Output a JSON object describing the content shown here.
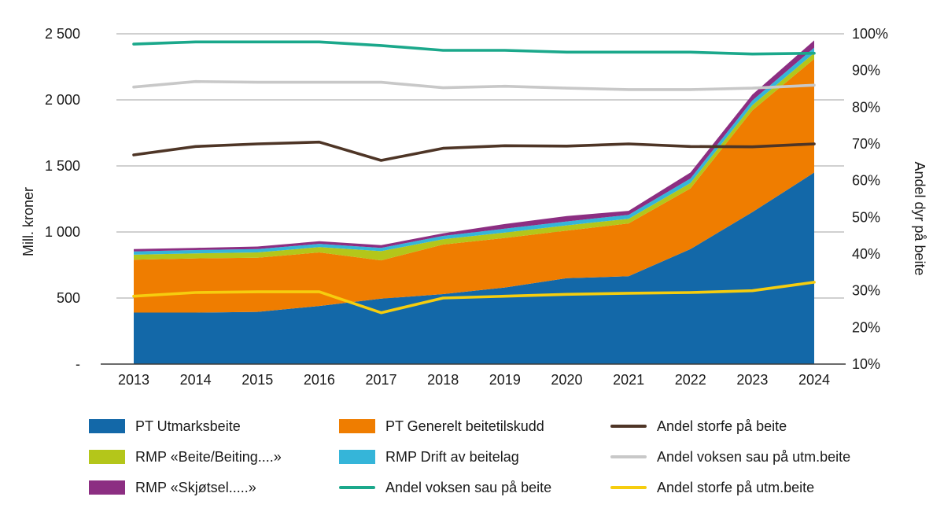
{
  "chart_data": {
    "type": "area",
    "title": "",
    "categories": [
      "2013",
      "2014",
      "2015",
      "2016",
      "2017",
      "2018",
      "2019",
      "2020",
      "2021",
      "2022",
      "2023",
      "2024"
    ],
    "left_axis": {
      "label": "Mill. kroner",
      "min": 0,
      "max": 2500,
      "ticks": [
        {
          "label": "2 500",
          "value": 2500
        },
        {
          "label": "2 000",
          "value": 2000
        },
        {
          "label": "1 500",
          "value": 1500
        },
        {
          "label": "1 000",
          "value": 1000
        },
        {
          "label": "500",
          "value": 500
        },
        {
          "label": "-",
          "value": 0
        }
      ]
    },
    "right_axis": {
      "label": "Andel dyr på beite",
      "min": 10,
      "max": 100,
      "ticks": [
        {
          "label": "100%",
          "value": 100
        },
        {
          "label": "90%",
          "value": 90
        },
        {
          "label": "80%",
          "value": 80
        },
        {
          "label": "70%",
          "value": 70
        },
        {
          "label": "60%",
          "value": 60
        },
        {
          "label": "50%",
          "value": 50
        },
        {
          "label": "40%",
          "value": 40
        },
        {
          "label": "30%",
          "value": 30
        },
        {
          "label": "20%",
          "value": 20
        },
        {
          "label": "10%",
          "value": 10
        }
      ]
    },
    "area_series": [
      {
        "name": "PT Utmarksbeite",
        "color": "#1368a8",
        "values": [
          390,
          390,
          395,
          440,
          495,
          530,
          580,
          650,
          665,
          870,
          1150,
          1450
        ]
      },
      {
        "name": "PT Generelt beitetilskudd",
        "color": "#ef7d00",
        "values": [
          400,
          410,
          410,
          405,
          290,
          375,
          375,
          360,
          400,
          460,
          770,
          860
        ]
      },
      {
        "name": "RMP «Beite/Beiting....»",
        "color": "#b4c61a",
        "values": [
          38,
          38,
          40,
          40,
          70,
          40,
          40,
          40,
          35,
          40,
          40,
          45
        ]
      },
      {
        "name": "RMP Drift av beitelag",
        "color": "#35b5d9",
        "values": [
          25,
          25,
          25,
          25,
          25,
          25,
          30,
          30,
          30,
          35,
          35,
          40
        ]
      },
      {
        "name": "RMP «Skjøtsel.....»",
        "color": "#8c2e82",
        "values": [
          17,
          17,
          20,
          20,
          20,
          20,
          35,
          40,
          30,
          45,
          45,
          55
        ]
      }
    ],
    "line_series": [
      {
        "name": "Andel storfe på beite",
        "color": "#4e3526",
        "values": [
          67,
          69.3,
          70,
          70.5,
          65.5,
          68.8,
          69.5,
          69.4,
          70,
          69.3,
          69.2,
          70
        ]
      },
      {
        "name": "Andel voksen sau på utm.beite",
        "color": "#c8c8c8",
        "values": [
          85.5,
          87,
          86.8,
          86.8,
          86.8,
          85.3,
          85.7,
          85.2,
          84.8,
          84.8,
          85.2,
          86
        ]
      },
      {
        "name": "Andel voksen sau på beite",
        "color": "#1ba88b",
        "values": [
          97.2,
          97.8,
          97.8,
          97.8,
          96.8,
          95.5,
          95.5,
          95,
          95,
          95,
          94.5,
          94.7
        ]
      },
      {
        "name": "Andel storfe på utm.beite",
        "color": "#f6cd0e",
        "values": [
          28.5,
          29.5,
          29.7,
          29.7,
          24,
          28,
          28.5,
          29,
          29.3,
          29.5,
          30,
          32.3
        ]
      }
    ],
    "legend": [
      {
        "label": "PT Utmarksbeite",
        "type": "area",
        "color": "#1368a8"
      },
      {
        "label": "RMP «Beite/Beiting....»",
        "type": "area",
        "color": "#b4c61a"
      },
      {
        "label": "RMP «Skjøtsel.....»",
        "type": "area",
        "color": "#8c2e82"
      },
      {
        "label": "PT Generelt beitetilskudd",
        "type": "area",
        "color": "#ef7d00"
      },
      {
        "label": "RMP Drift av beitelag",
        "type": "area",
        "color": "#35b5d9"
      },
      {
        "label": "Andel voksen sau på beite",
        "type": "line",
        "color": "#1ba88b"
      },
      {
        "label": "Andel storfe på beite",
        "type": "line",
        "color": "#4e3526"
      },
      {
        "label": "Andel voksen sau på utm.beite",
        "type": "line",
        "color": "#c8c8c8"
      },
      {
        "label": "Andel storfe på utm.beite",
        "type": "line",
        "color": "#f6cd0e"
      }
    ]
  }
}
